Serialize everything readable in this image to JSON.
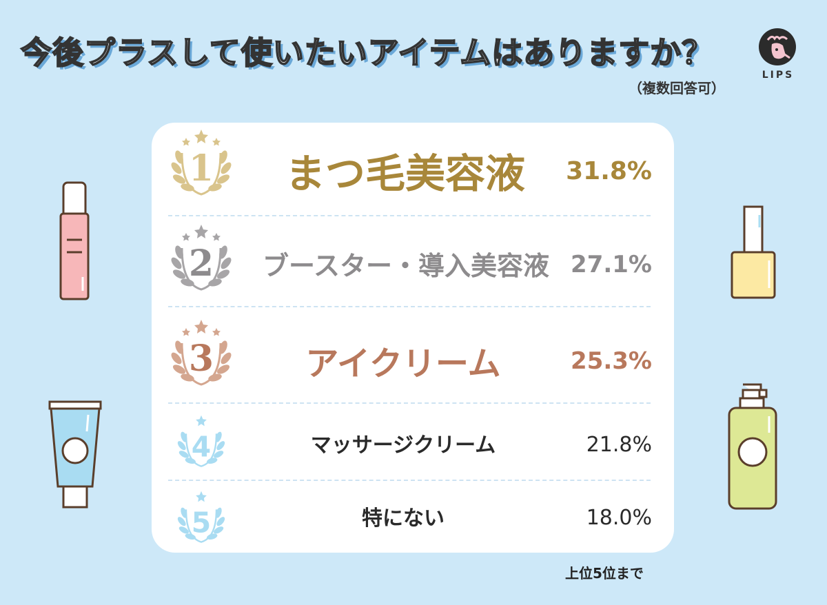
{
  "header": {
    "title": "今後プラスして使いたいアイテムはありますか？",
    "note": "（複数回答可）",
    "logo_text": "LIPS"
  },
  "footer": {
    "note": "上位5位まで"
  },
  "chart_data": {
    "type": "table",
    "title": "今後プラスして使いたいアイテムはありますか？",
    "subtitle": "（複数回答可）",
    "columns": [
      "rank",
      "item",
      "percent"
    ],
    "rows": [
      {
        "rank": "1",
        "label": "まつ毛美容液",
        "value": "31.8%",
        "color": "#a8873a"
      },
      {
        "rank": "2",
        "label": "ブースター・導入美容液",
        "value": "27.1%",
        "color": "#8d8b8d"
      },
      {
        "rank": "3",
        "label": "アイクリーム",
        "value": "25.3%",
        "color": "#b8785c"
      },
      {
        "rank": "4",
        "label": "マッサージクリーム",
        "value": "21.8%",
        "color": "#2a2a2a"
      },
      {
        "rank": "5",
        "label": "特にない",
        "value": "18.0%",
        "color": "#2a2a2a"
      }
    ],
    "values": [
      31.8,
      27.1,
      25.3,
      21.8,
      18.0
    ],
    "footnote": "上位5位まで"
  },
  "colors": {
    "background": "#cde8f8",
    "gold": "#a8873a",
    "gold_light": "#d9c48c",
    "silver": "#8d8b8d",
    "bronze": "#b8785c",
    "light_blue": "#a9dcf2",
    "title_shadow": "#6aa8d8"
  },
  "icons": [
    "lips-deer-logo-icon",
    "laurel-wreath-icon",
    "star-icon",
    "lotion-bottle-icon",
    "nail-polish-icon",
    "cream-tube-icon",
    "pump-bottle-icon"
  ]
}
